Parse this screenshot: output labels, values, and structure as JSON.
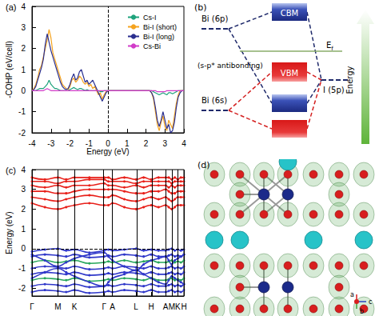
{
  "chart_data": [
    {
      "type": "line",
      "title": "(a)",
      "x_label": "Energy (eV)",
      "y_label": "-COHP (eV/cell)",
      "xlim": [
        -4,
        4
      ],
      "xticks": [
        -4,
        -3,
        -2,
        -1,
        0,
        1,
        2,
        3,
        4
      ],
      "ylim": [
        -2,
        4
      ],
      "yticks": [
        -2,
        -1,
        0,
        1,
        2,
        3,
        4
      ],
      "legend": "top-right",
      "reference_lines": [
        {
          "x": 0,
          "line_style": "dashed"
        }
      ],
      "x": [
        -4,
        -3.9,
        -3.8,
        -3.7,
        -3.6,
        -3.5,
        -3.4,
        -3.3,
        -3.2,
        -3.1,
        -3,
        -2.9,
        -2.8,
        -2.7,
        -2.6,
        -2.5,
        -2.4,
        -2.3,
        -2.2,
        -2.1,
        -2,
        -1.9,
        -1.8,
        -1.7,
        -1.6,
        -1.5,
        -1.4,
        -1.3,
        -1.2,
        -1.1,
        -1,
        -0.9,
        -0.8,
        -0.7,
        -0.6,
        -0.5,
        -0.4,
        -0.3,
        -0.2,
        -0.1,
        0,
        0.1,
        0.2,
        0.3,
        0.4,
        0.5,
        0.6,
        0.7,
        0.8,
        0.9,
        1,
        1.1,
        1.2,
        1.3,
        1.4,
        1.5,
        1.6,
        1.7,
        1.8,
        1.9,
        2,
        2.1,
        2.2,
        2.3,
        2.4,
        2.5,
        2.6,
        2.7,
        2.8,
        2.9,
        3,
        3.1,
        3.2,
        3.3,
        3.4,
        3.5,
        3.6,
        3.7,
        3.8,
        3.9,
        4
      ],
      "series": [
        {
          "name": "Cs-I",
          "color": "#1fa37c",
          "values": [
            0,
            0,
            0,
            0.05,
            0.1,
            0.1,
            0.1,
            0.2,
            0.3,
            0.5,
            0.3,
            0.2,
            0.1,
            0.1,
            0.05,
            0,
            0,
            0,
            0,
            0,
            0.05,
            0.1,
            0.15,
            0.1,
            0.05,
            0.1,
            0.1,
            0.05,
            0,
            0.05,
            0,
            0,
            0,
            0,
            0,
            0,
            -0.05,
            -0.05,
            0,
            0,
            0,
            0,
            0,
            0,
            0,
            0,
            0,
            0,
            0,
            0,
            0,
            0,
            0,
            0,
            0,
            0,
            0,
            0,
            0,
            0,
            0,
            0,
            0,
            0,
            -0.05,
            -0.1,
            -0.15,
            -0.2,
            -0.15,
            -0.1,
            -0.15,
            -0.2,
            -0.1,
            -0.1,
            -0.15,
            -0.1,
            -0.05,
            0,
            0,
            0,
            0
          ]
        },
        {
          "name": "Bi-I (short)",
          "color": "#f5a31f",
          "values": [
            0,
            0.1,
            0.3,
            0.6,
            1,
            1.2,
            1.6,
            2,
            2.4,
            2.9,
            2.5,
            1.8,
            1.5,
            1.2,
            0.9,
            0.6,
            0.3,
            0.2,
            0.1,
            0.05,
            0.2,
            0.5,
            0.6,
            0.4,
            0.5,
            0.7,
            0.6,
            0.4,
            0.3,
            0.4,
            0.2,
            0.3,
            0.1,
            0.2,
            0,
            -0.2,
            -0.1,
            -0.4,
            -0.2,
            -0.05,
            0,
            0,
            0,
            0,
            0,
            0,
            0,
            0,
            0,
            0,
            0,
            0,
            0,
            0,
            0,
            0,
            0,
            0,
            0,
            0,
            0,
            0,
            0,
            -0.1,
            -0.4,
            -1,
            -1.6,
            -1.9,
            -1.5,
            -1.2,
            -1.7,
            -1.9,
            -1.4,
            -1.6,
            -1.8,
            -1.2,
            -0.6,
            -0.2,
            0,
            0,
            0
          ]
        },
        {
          "name": "Bi-I (long)",
          "color": "#2a2f8f",
          "values": [
            0,
            0.05,
            0.2,
            0.5,
            0.8,
            1.1,
            1.5,
            2.2,
            2.7,
            2.3,
            1.9,
            1.6,
            1.3,
            1,
            0.7,
            0.4,
            0.2,
            0.1,
            0.05,
            0.1,
            0.3,
            0.6,
            0.8,
            0.5,
            0.6,
            0.9,
            1,
            0.7,
            0.4,
            0.5,
            0.3,
            0.4,
            0.5,
            0.3,
            0.1,
            -0.1,
            -0.3,
            -0.5,
            -0.3,
            -0.1,
            0,
            0,
            0,
            0,
            0,
            0,
            0,
            0,
            0,
            0,
            0,
            0,
            0,
            0,
            0,
            0,
            0,
            0,
            0,
            0,
            0,
            0,
            0,
            -0.1,
            -0.3,
            -0.8,
            -1.4,
            -1.7,
            -1.4,
            -1,
            -1.4,
            -1.8,
            -1.6,
            -2,
            -1.9,
            -1.5,
            -0.8,
            -0.3,
            -0.1,
            0,
            0
          ]
        },
        {
          "name": "Cs-Bi",
          "color": "#d13cc8",
          "values": [
            0,
            0,
            0,
            0,
            0,
            0,
            0,
            0.05,
            0.1,
            0.05,
            0,
            0,
            0,
            0,
            0,
            0,
            0,
            0,
            0,
            0,
            0,
            0,
            0,
            0,
            0,
            0,
            0,
            0,
            0,
            0,
            0,
            0,
            0,
            0,
            0,
            0,
            0,
            0,
            0,
            0,
            0,
            0,
            0,
            0,
            0,
            0,
            0,
            0,
            0,
            0,
            0,
            0,
            0,
            0,
            0,
            0,
            0,
            0,
            0,
            0,
            0,
            0,
            0,
            0,
            0,
            0,
            -0.05,
            -0.05,
            -0.05,
            -0.05,
            -0.05,
            0,
            0,
            0,
            0,
            0,
            0,
            0,
            0,
            0,
            0
          ]
        }
      ]
    },
    {
      "type": "line",
      "title": "(c)",
      "y_label": "Energy (eV)",
      "xlim": [
        0,
        1
      ],
      "xticks": [
        {
          "value": 0,
          "label": "Γ"
        },
        {
          "value": 0.17,
          "label": "M"
        },
        {
          "value": 0.28,
          "label": "K"
        },
        {
          "value": 0.475,
          "label": "Γ"
        },
        {
          "value": 0.53,
          "label": "A"
        },
        {
          "value": 0.685,
          "label": "L"
        },
        {
          "value": 0.785,
          "label": "H"
        },
        {
          "value": 0.88,
          "label": "A"
        },
        {
          "value": 0.92,
          "label": "M"
        },
        {
          "value": 0.96,
          "label": "K"
        },
        {
          "value": 1,
          "label": "H"
        }
      ],
      "ylim": [
        -2.4,
        4
      ],
      "yticks": [
        -2,
        -1,
        0,
        1,
        2,
        3,
        4
      ],
      "grid": true,
      "marker": "circle",
      "reference_lines": [
        {
          "y": 0,
          "line_style": "dashed"
        }
      ],
      "x": [
        0,
        0.085,
        0.17,
        0.225,
        0.28,
        0.378,
        0.475,
        0.503,
        0.53,
        0.608,
        0.685,
        0.735,
        0.785,
        0.833,
        0.88,
        0.9,
        0.92,
        0.94,
        0.96,
        0.98,
        1
      ],
      "series": [
        {
          "color": "#e8201a",
          "values": [
            2.3,
            2.1,
            2,
            2.1,
            2.2,
            2.3,
            2.2,
            2.2,
            2.3,
            2.1,
            2,
            2.1,
            2.2,
            2.1,
            2.2,
            2.1,
            2,
            2.1,
            2.2,
            2.2,
            2.2
          ]
        },
        {
          "color": "#e8201a",
          "values": [
            2.6,
            2.5,
            2.4,
            2.5,
            2.6,
            2.7,
            2.6,
            2.6,
            2.7,
            2.5,
            2.4,
            2.5,
            2.6,
            2.5,
            2.6,
            2.5,
            2.4,
            2.5,
            2.6,
            2.6,
            2.6
          ]
        },
        {
          "color": "#e8201a",
          "values": [
            2.9,
            2.9,
            2.8,
            2.8,
            2.9,
            3,
            3,
            3,
            3,
            2.9,
            2.8,
            2.8,
            2.9,
            2.9,
            3,
            2.9,
            2.8,
            2.8,
            2.9,
            2.9,
            2.9
          ]
        },
        {
          "color": "#e8201a",
          "values": [
            3.2,
            3.1,
            3.2,
            3.1,
            3.2,
            3.2,
            3.3,
            3.2,
            3.2,
            3.1,
            3.2,
            3.1,
            3.2,
            3.2,
            3.2,
            3.1,
            3.2,
            3.1,
            3.2,
            3.2,
            3.2
          ]
        },
        {
          "color": "#e8201a",
          "values": [
            3.4,
            3.4,
            3.3,
            3.4,
            3.4,
            3.5,
            3.5,
            3.4,
            3.4,
            3.4,
            3.3,
            3.4,
            3.4,
            3.4,
            3.4,
            3.4,
            3.3,
            3.4,
            3.4,
            3.4,
            3.4
          ]
        },
        {
          "color": "#e8201a",
          "values": [
            3.6,
            3.5,
            3.6,
            3.5,
            3.6,
            3.6,
            3.6,
            3.6,
            3.5,
            3.6,
            3.5,
            3.6,
            3.5,
            3.6,
            3.6,
            3.6,
            3.5,
            3.6,
            3.5,
            3.6,
            3.6
          ]
        },
        {
          "color": "#2f37c9",
          "values": [
            -0.15,
            -0.05,
            0,
            -0.1,
            -0.05,
            -0.2,
            -0.1,
            -0.05,
            -0.1,
            -0.05,
            0,
            -0.1,
            -0.05,
            -0.1,
            -0.1,
            -0.05,
            0,
            -0.1,
            -0.05,
            -0.1,
            -0.05
          ]
        },
        {
          "color": "#2f37c9",
          "values": [
            -0.4,
            -0.3,
            -0.35,
            -0.4,
            -0.3,
            -0.45,
            -0.4,
            -0.35,
            -0.4,
            -0.3,
            -0.35,
            -0.4,
            -0.3,
            -0.4,
            -0.4,
            -0.35,
            -0.3,
            -0.4,
            -0.35,
            -0.4,
            -0.3
          ]
        },
        {
          "color": "#26a65b",
          "values": [
            -0.7,
            -0.6,
            -0.7,
            -0.65,
            -0.6,
            -0.75,
            -0.7,
            -0.65,
            -0.7,
            -0.6,
            -0.7,
            -0.65,
            -0.6,
            -0.7,
            -0.7,
            -0.65,
            -0.6,
            -0.7,
            -0.65,
            -0.7,
            -0.6
          ]
        },
        {
          "color": "#2f37c9",
          "values": [
            -1,
            -0.9,
            -0.95,
            -1,
            -0.9,
            -1.05,
            -1,
            -0.95,
            -1,
            -0.9,
            -0.95,
            -1,
            -0.9,
            -1,
            -1,
            -0.95,
            -0.9,
            -1,
            -0.95,
            -1,
            -0.9
          ]
        },
        {
          "color": "#2f37c9",
          "values": [
            -1.3,
            -1.2,
            -1.25,
            -1.3,
            -1.2,
            -1.35,
            -1.3,
            -1.25,
            -1.3,
            -1.2,
            -1.25,
            -1.3,
            -1.2,
            -1.3,
            -1.3,
            -1.25,
            -1.2,
            -1.3,
            -1.25,
            -1.3,
            -1.2
          ]
        },
        {
          "color": "#26a65b",
          "values": [
            -1.6,
            -1.5,
            -1.55,
            -1.6,
            -1.5,
            -1.65,
            -1.6,
            -1.55,
            -1.6,
            -1.5,
            -1.55,
            -1.6,
            -1.5,
            -1.6,
            -1.6,
            -1.55,
            -1.5,
            -1.6,
            -1.55,
            -1.6,
            -1.5
          ]
        },
        {
          "color": "#2f37c9",
          "values": [
            -1.9,
            -1.8,
            -1.85,
            -1.9,
            -1.8,
            -1.95,
            -1.9,
            -1.85,
            -1.9,
            -1.8,
            -1.85,
            -1.9,
            -1.8,
            -1.9,
            -1.9,
            -1.85,
            -1.8,
            -1.9,
            -1.85,
            -1.9,
            -1.8
          ]
        },
        {
          "color": "#2f37c9",
          "values": [
            -2.2,
            -2.1,
            -2.15,
            -2.2,
            -2.1,
            -2.25,
            -2.2,
            -2.15,
            -2.2,
            -2.1,
            -2.15,
            -2.2,
            -2.1,
            -2.2,
            -2.2,
            -2.15,
            -2.1,
            -2.2,
            -2.15,
            -2.2,
            -2.1
          ]
        },
        {
          "color": "#2f37c9",
          "values": [
            -0.3,
            -0.6,
            -0.9,
            -0.7,
            -0.5,
            -0.3,
            -0.2,
            -0.4,
            -0.6,
            -0.9,
            -1.1,
            -0.8,
            -0.6,
            -0.5,
            -0.4,
            -0.6,
            -0.8,
            -0.6,
            -0.5,
            -0.4,
            -0.3
          ]
        },
        {
          "color": "#2f37c9",
          "values": [
            -1.5,
            -1.2,
            -1,
            -1.2,
            -1.4,
            -1.7,
            -1.9,
            -1.7,
            -1.5,
            -1.3,
            -1.1,
            -1.3,
            -1.5,
            -1.7,
            -1.8,
            -1.6,
            -1.4,
            -1.5,
            -1.6,
            -1.7,
            -1.8
          ]
        }
      ]
    }
  ],
  "diagram": {
    "title": "(b)",
    "levels": [
      {
        "label": "Bi (6p)"
      },
      {
        "label": "Bi (6s)"
      },
      {
        "label": "I (5p)"
      }
    ],
    "bands": [
      {
        "label": "CBM"
      },
      {
        "label": "VBM"
      }
    ],
    "fermi_level": {
      "main": "E",
      "sub": "f"
    },
    "note": "(s-p* antibonding)",
    "arrow": "Energy"
  },
  "structure": {
    "title": "(d)",
    "axes": [
      "a",
      "c",
      "b"
    ]
  }
}
